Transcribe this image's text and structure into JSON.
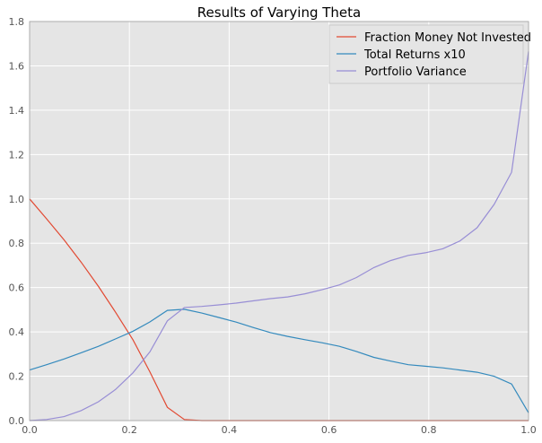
{
  "chart_data": {
    "type": "line",
    "title": "Results of Varying Theta",
    "xlabel": "",
    "ylabel": "",
    "xlim": [
      0,
      1
    ],
    "ylim": [
      0,
      1.8
    ],
    "xticks": [
      "0.0",
      "0.2",
      "0.4",
      "0.6",
      "0.8",
      "1.0"
    ],
    "yticks": [
      "0.0",
      "0.2",
      "0.4",
      "0.6",
      "0.8",
      "1.0",
      "1.2",
      "1.4",
      "1.6",
      "1.8"
    ],
    "grid": true,
    "legend_position": "top-right",
    "x": [
      0.0,
      0.034,
      0.069,
      0.103,
      0.138,
      0.172,
      0.207,
      0.241,
      0.276,
      0.31,
      0.345,
      0.379,
      0.414,
      0.448,
      0.483,
      0.517,
      0.552,
      0.586,
      0.621,
      0.655,
      0.69,
      0.724,
      0.759,
      0.793,
      0.828,
      0.862,
      0.897,
      0.931,
      0.966,
      1.0
    ],
    "series": [
      {
        "name": "Fraction Money Not Invested",
        "color": "#e24a33",
        "values": [
          1.0,
          0.91,
          0.815,
          0.715,
          0.605,
          0.49,
          0.365,
          0.22,
          0.06,
          0.005,
          0.0,
          0.0,
          0.0,
          0.0,
          0.0,
          0.0,
          0.0,
          0.0,
          0.0,
          0.0,
          0.0,
          0.0,
          0.0,
          0.0,
          0.0,
          0.0,
          0.0,
          0.0,
          0.0,
          0.0
        ]
      },
      {
        "name": "Total Returns x10",
        "color": "#348abd",
        "values": [
          0.228,
          0.252,
          0.278,
          0.306,
          0.335,
          0.368,
          0.403,
          0.445,
          0.497,
          0.502,
          0.485,
          0.465,
          0.444,
          0.42,
          0.397,
          0.38,
          0.365,
          0.351,
          0.335,
          0.312,
          0.285,
          0.268,
          0.252,
          0.245,
          0.238,
          0.228,
          0.218,
          0.2,
          0.165,
          0.035
        ]
      },
      {
        "name": "Portfolio Variance",
        "color": "#988ed5",
        "values": [
          0.0,
          0.005,
          0.018,
          0.045,
          0.085,
          0.14,
          0.215,
          0.31,
          0.45,
          0.51,
          0.515,
          0.522,
          0.53,
          0.54,
          0.55,
          0.558,
          0.572,
          0.59,
          0.612,
          0.645,
          0.69,
          0.722,
          0.745,
          0.757,
          0.775,
          0.81,
          0.87,
          0.975,
          1.12,
          1.665
        ]
      }
    ]
  }
}
